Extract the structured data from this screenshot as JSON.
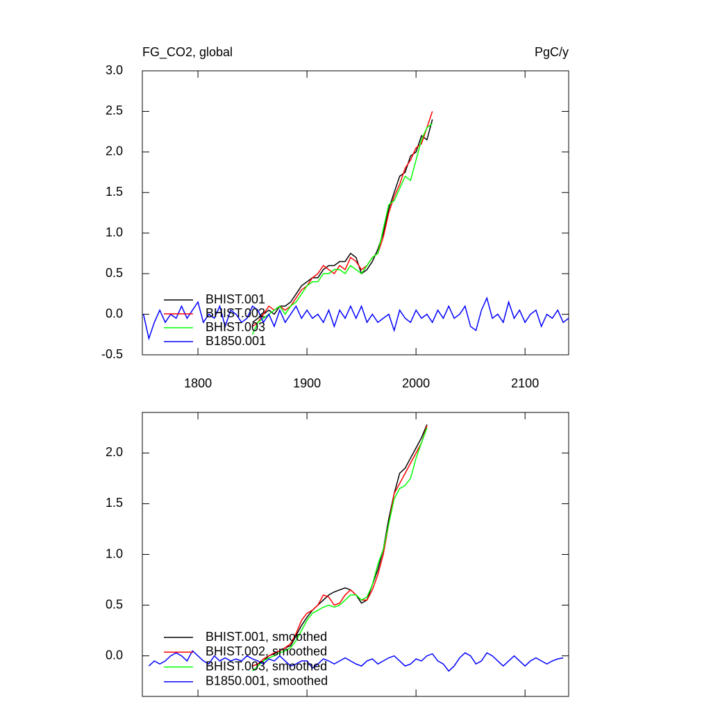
{
  "chart_data": [
    {
      "type": "line",
      "title": "FG_CO2, global",
      "units": "PgC/y",
      "xlim": [
        1749,
        2140
      ],
      "xticks": [
        1800,
        1900,
        2000,
        2100
      ],
      "xtick_labels": true,
      "ylim": [
        -0.5,
        3.0
      ],
      "yticks": [
        -0.5,
        {
          "value": 0,
          "label": "0.0"
        },
        0.5,
        {
          "value": 1,
          "label": "1.0"
        },
        1.5,
        {
          "value": 2,
          "label": "2.0"
        },
        2.5,
        {
          "value": 3,
          "label": "3.0"
        }
      ],
      "series": [
        {
          "name": "BHIST.001",
          "color": "#000000",
          "x": [
            1850,
            1855,
            1860,
            1865,
            1870,
            1875,
            1880,
            1885,
            1890,
            1895,
            1900,
            1905,
            1910,
            1915,
            1920,
            1925,
            1930,
            1935,
            1940,
            1945,
            1950,
            1955,
            1960,
            1965,
            1970,
            1975,
            1980,
            1985,
            1990,
            1995,
            2000,
            2005,
            2010,
            2015
          ],
          "values": [
            -0.1,
            -0.05,
            0.0,
            0.05,
            0.0,
            0.1,
            0.1,
            0.15,
            0.25,
            0.35,
            0.4,
            0.45,
            0.45,
            0.55,
            0.6,
            0.6,
            0.65,
            0.65,
            0.75,
            0.7,
            0.5,
            0.55,
            0.65,
            0.8,
            1.0,
            1.3,
            1.5,
            1.7,
            1.75,
            1.95,
            2.0,
            2.2,
            2.15,
            2.4
          ]
        },
        {
          "name": "BHIST.002",
          "color": "#ff0000",
          "x": [
            1850,
            1855,
            1860,
            1865,
            1870,
            1875,
            1880,
            1885,
            1890,
            1895,
            1900,
            1905,
            1910,
            1915,
            1920,
            1925,
            1930,
            1935,
            1940,
            1945,
            1950,
            1955,
            1960,
            1965,
            1970,
            1975,
            1980,
            1985,
            1990,
            1995,
            2000,
            2005,
            2010,
            2015
          ],
          "values": [
            -0.15,
            -0.1,
            0.0,
            0.1,
            0.05,
            0.1,
            0.05,
            0.1,
            0.2,
            0.3,
            0.35,
            0.45,
            0.5,
            0.6,
            0.55,
            0.5,
            0.6,
            0.55,
            0.7,
            0.65,
            0.55,
            0.6,
            0.7,
            0.75,
            0.95,
            1.25,
            1.45,
            1.6,
            1.8,
            1.9,
            2.05,
            2.1,
            2.3,
            2.5
          ]
        },
        {
          "name": "BHIST.003",
          "color": "#00ff00",
          "x": [
            1850,
            1855,
            1860,
            1865,
            1870,
            1875,
            1880,
            1885,
            1890,
            1895,
            1900,
            1905,
            1910,
            1915,
            1920,
            1925,
            1930,
            1935,
            1940,
            1945,
            1950,
            1955,
            1960,
            1965,
            1970,
            1975,
            1980,
            1985,
            1990,
            1995,
            2000,
            2005,
            2010,
            2015
          ],
          "values": [
            -0.25,
            -0.1,
            -0.05,
            0.0,
            0.05,
            0.1,
            0.0,
            0.1,
            0.15,
            0.25,
            0.35,
            0.4,
            0.4,
            0.5,
            0.5,
            0.55,
            0.55,
            0.5,
            0.6,
            0.55,
            0.5,
            0.6,
            0.7,
            0.75,
            1.05,
            1.35,
            1.4,
            1.55,
            1.7,
            1.65,
            1.9,
            2.15,
            2.3,
            2.35
          ]
        },
        {
          "name": "B1850.001",
          "color": "#0000ff",
          "x": [
            1750,
            1755,
            1760,
            1765,
            1770,
            1775,
            1780,
            1785,
            1790,
            1795,
            1800,
            1805,
            1810,
            1815,
            1820,
            1825,
            1830,
            1835,
            1840,
            1845,
            1850,
            1855,
            1860,
            1865,
            1870,
            1875,
            1880,
            1885,
            1890,
            1895,
            1900,
            1905,
            1910,
            1915,
            1920,
            1925,
            1930,
            1935,
            1940,
            1945,
            1950,
            1955,
            1960,
            1965,
            1970,
            1975,
            1980,
            1985,
            1990,
            1995,
            2000,
            2005,
            2010,
            2015,
            2020,
            2025,
            2030,
            2035,
            2040,
            2045,
            2050,
            2055,
            2060,
            2065,
            2070,
            2075,
            2080,
            2085,
            2090,
            2095,
            2100,
            2105,
            2110,
            2115,
            2120,
            2125,
            2130,
            2135,
            2140
          ],
          "values": [
            0.0,
            -0.3,
            -0.1,
            0.05,
            -0.1,
            0.0,
            -0.05,
            0.1,
            -0.05,
            0.05,
            0.15,
            -0.1,
            0.0,
            -0.05,
            0.1,
            -0.15,
            0.05,
            0.0,
            -0.1,
            -0.05,
            0.1,
            0.05,
            -0.1,
            0.0,
            -0.15,
            0.05,
            -0.1,
            0.0,
            0.1,
            -0.05,
            0.05,
            -0.05,
            0.0,
            -0.1,
            0.05,
            -0.15,
            0.05,
            -0.05,
            0.1,
            -0.05,
            0.1,
            -0.1,
            0.0,
            -0.1,
            -0.05,
            0.0,
            -0.2,
            0.05,
            -0.05,
            -0.1,
            0.05,
            -0.05,
            0.0,
            -0.1,
            0.05,
            -0.05,
            0.1,
            -0.05,
            0.0,
            0.1,
            -0.15,
            -0.2,
            0.05,
            0.2,
            -0.05,
            0.0,
            -0.1,
            0.15,
            -0.05,
            0.05,
            -0.1,
            0.0,
            0.05,
            -0.15,
            0.0,
            -0.05,
            0.05,
            -0.1,
            -0.05
          ]
        }
      ]
    },
    {
      "type": "line",
      "xlim": [
        1749,
        2140
      ],
      "xticks": [
        1800,
        1900,
        2000,
        2100
      ],
      "xtick_labels": false,
      "ylim": [
        -0.4,
        2.4
      ],
      "yticks": [
        {
          "value": 0,
          "label": "0.0"
        },
        0.5,
        {
          "value": 1,
          "label": "1.0"
        },
        1.5,
        {
          "value": 2,
          "label": "2.0"
        }
      ],
      "series": [
        {
          "name": "BHIST.001, smoothed",
          "color": "#000000",
          "x": [
            1850,
            1855,
            1860,
            1865,
            1870,
            1875,
            1880,
            1885,
            1890,
            1895,
            1900,
            1905,
            1910,
            1915,
            1920,
            1925,
            1930,
            1935,
            1940,
            1945,
            1950,
            1955,
            1960,
            1965,
            1970,
            1975,
            1980,
            1985,
            1990,
            1995,
            2000,
            2005,
            2010
          ],
          "values": [
            -0.1,
            -0.08,
            -0.05,
            0.0,
            0.02,
            0.05,
            0.08,
            0.1,
            0.2,
            0.3,
            0.38,
            0.45,
            0.5,
            0.55,
            0.6,
            0.63,
            0.65,
            0.67,
            0.65,
            0.6,
            0.52,
            0.55,
            0.7,
            0.85,
            1.05,
            1.35,
            1.6,
            1.8,
            1.85,
            1.95,
            2.05,
            2.15,
            2.28
          ]
        },
        {
          "name": "BHIST.002, smoothed",
          "color": "#ff0000",
          "x": [
            1850,
            1855,
            1860,
            1865,
            1870,
            1875,
            1880,
            1885,
            1890,
            1895,
            1900,
            1905,
            1910,
            1915,
            1920,
            1925,
            1930,
            1935,
            1940,
            1945,
            1950,
            1955,
            1960,
            1965,
            1970,
            1975,
            1980,
            1985,
            1990,
            1995,
            2000,
            2005,
            2010
          ],
          "values": [
            -0.1,
            -0.08,
            -0.03,
            0.0,
            0.03,
            0.05,
            0.08,
            0.12,
            0.22,
            0.35,
            0.42,
            0.45,
            0.5,
            0.6,
            0.58,
            0.5,
            0.52,
            0.6,
            0.65,
            0.6,
            0.55,
            0.55,
            0.65,
            0.8,
            1.0,
            1.3,
            1.6,
            1.7,
            1.8,
            1.9,
            2.0,
            2.1,
            2.27
          ]
        },
        {
          "name": "BHIST.003, smoothed",
          "color": "#00ff00",
          "x": [
            1850,
            1855,
            1860,
            1865,
            1870,
            1875,
            1880,
            1885,
            1890,
            1895,
            1900,
            1905,
            1910,
            1915,
            1920,
            1925,
            1930,
            1935,
            1940,
            1945,
            1950,
            1955,
            1960,
            1965,
            1970,
            1975,
            1980,
            1985,
            1990,
            1995,
            2000,
            2005,
            2010
          ],
          "values": [
            -0.15,
            -0.1,
            -0.05,
            -0.02,
            0.0,
            0.03,
            0.05,
            0.08,
            0.15,
            0.25,
            0.35,
            0.42,
            0.45,
            0.48,
            0.5,
            0.48,
            0.5,
            0.55,
            0.6,
            0.6,
            0.55,
            0.58,
            0.7,
            0.9,
            1.05,
            1.3,
            1.55,
            1.65,
            1.68,
            1.75,
            1.95,
            2.1,
            2.25
          ]
        },
        {
          "name": "B1850.001, smoothed",
          "color": "#0000ff",
          "x": [
            1755,
            1760,
            1765,
            1770,
            1775,
            1780,
            1785,
            1790,
            1795,
            1800,
            1805,
            1810,
            1815,
            1820,
            1825,
            1830,
            1835,
            1840,
            1845,
            1850,
            1855,
            1860,
            1865,
            1870,
            1875,
            1880,
            1885,
            1890,
            1895,
            1900,
            1905,
            1910,
            1915,
            1920,
            1925,
            1930,
            1935,
            1940,
            1945,
            1950,
            1955,
            1960,
            1965,
            1970,
            1975,
            1980,
            1985,
            1990,
            1995,
            2000,
            2005,
            2010,
            2015,
            2020,
            2025,
            2030,
            2035,
            2040,
            2045,
            2050,
            2055,
            2060,
            2065,
            2070,
            2075,
            2080,
            2085,
            2090,
            2095,
            2100,
            2105,
            2110,
            2115,
            2120,
            2125,
            2130,
            2135
          ],
          "values": [
            -0.1,
            -0.05,
            -0.08,
            -0.05,
            0.0,
            0.03,
            0.0,
            -0.05,
            0.05,
            0.0,
            -0.05,
            -0.08,
            0.0,
            -0.05,
            -0.02,
            -0.05,
            -0.03,
            -0.05,
            0.0,
            -0.03,
            -0.05,
            -0.08,
            -0.03,
            -0.05,
            0.0,
            -0.05,
            -0.1,
            -0.08,
            -0.05,
            -0.05,
            -0.12,
            -0.08,
            -0.03,
            -0.05,
            -0.08,
            -0.05,
            -0.02,
            -0.05,
            -0.08,
            -0.1,
            -0.05,
            -0.03,
            -0.08,
            -0.05,
            -0.02,
            0.0,
            -0.05,
            -0.1,
            -0.08,
            -0.03,
            -0.05,
            0.0,
            0.02,
            -0.05,
            -0.08,
            -0.15,
            -0.1,
            -0.02,
            0.03,
            0.0,
            -0.08,
            -0.05,
            0.03,
            0.0,
            -0.05,
            -0.1,
            -0.05,
            0.0,
            -0.05,
            -0.1,
            -0.05,
            -0.02,
            -0.05,
            -0.08,
            -0.05,
            -0.03,
            -0.02
          ]
        }
      ]
    }
  ]
}
